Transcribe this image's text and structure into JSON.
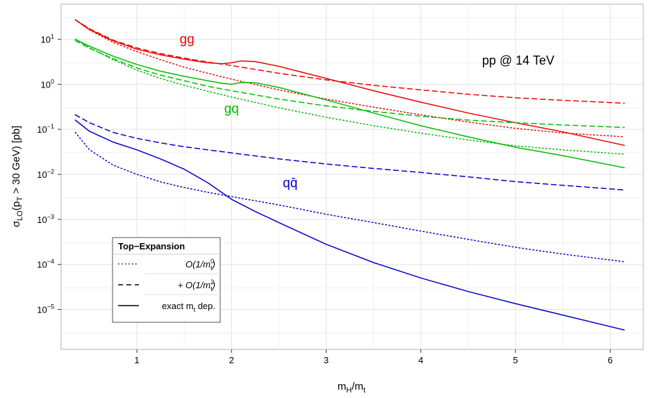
{
  "chart_data": {
    "type": "line",
    "xlabel": "m_H/m_t",
    "ylabel": "σ_LO(p_T > 30 GeV) [pb]",
    "xlim": [
      0.2,
      6.35
    ],
    "ylim": [
      1.3e-06,
      60
    ],
    "y_scale": "log",
    "grid": true,
    "x_ticks": [
      {
        "v": 1,
        "label": "1"
      },
      {
        "v": 2,
        "label": "2"
      },
      {
        "v": 3,
        "label": "3"
      },
      {
        "v": 4,
        "label": "4"
      },
      {
        "v": 5,
        "label": "5"
      },
      {
        "v": 6,
        "label": "6"
      }
    ],
    "y_ticks": [
      {
        "v": 10,
        "base": "10",
        "exp": "1"
      },
      {
        "v": 1,
        "base": "10",
        "exp": "0"
      },
      {
        "v": 0.1,
        "base": "10",
        "exp": "−1"
      },
      {
        "v": 0.01,
        "base": "10",
        "exp": "−2"
      },
      {
        "v": 0.001,
        "base": "10",
        "exp": "−3"
      },
      {
        "v": 0.0001,
        "base": "10",
        "exp": "−4"
      },
      {
        "v": 1e-05,
        "base": "10",
        "exp": "−5"
      }
    ],
    "annotation": "pp @ 14 TeV",
    "channel_labels": [
      {
        "text": "gg",
        "color": "#ee0000",
        "x": 1.53,
        "y": 8.0
      },
      {
        "text": "gq",
        "color": "#00bb00",
        "x": 2.0,
        "y": 0.23
      },
      {
        "text": "qq̄",
        "color": "#0000cc",
        "x": 2.62,
        "y": 0.0052
      }
    ],
    "series": [
      {
        "channel": "gg",
        "approx": "O(1/m_t^0)",
        "color": "#ee0000",
        "style": "dotted",
        "points": [
          [
            0.35,
            27
          ],
          [
            0.5,
            16
          ],
          [
            0.75,
            8.5
          ],
          [
            1.0,
            5.3
          ],
          [
            1.25,
            3.5
          ],
          [
            1.5,
            2.4
          ],
          [
            1.75,
            1.75
          ],
          [
            2.0,
            1.3
          ],
          [
            2.5,
            0.75
          ],
          [
            3.0,
            0.47
          ],
          [
            3.5,
            0.31
          ],
          [
            4.0,
            0.21
          ],
          [
            4.5,
            0.145
          ],
          [
            5.0,
            0.105
          ],
          [
            5.5,
            0.083
          ],
          [
            6.15,
            0.068
          ]
        ]
      },
      {
        "channel": "gg",
        "approx": "+O(1/m_t^2)",
        "color": "#ee0000",
        "style": "dashed",
        "points": [
          [
            0.35,
            27
          ],
          [
            0.5,
            17
          ],
          [
            0.75,
            9.5
          ],
          [
            1.0,
            6.4
          ],
          [
            1.25,
            4.8
          ],
          [
            1.5,
            3.8
          ],
          [
            1.75,
            3.1
          ],
          [
            2.0,
            2.6
          ],
          [
            2.5,
            1.75
          ],
          [
            3.0,
            1.25
          ],
          [
            3.5,
            0.95
          ],
          [
            4.0,
            0.75
          ],
          [
            4.5,
            0.6
          ],
          [
            5.0,
            0.5
          ],
          [
            5.5,
            0.44
          ],
          [
            6.15,
            0.38
          ]
        ]
      },
      {
        "channel": "gg",
        "approx": "exact m_t dep.",
        "color": "#ee0000",
        "style": "solid",
        "points": [
          [
            0.35,
            27
          ],
          [
            0.5,
            16.5
          ],
          [
            0.75,
            9.2
          ],
          [
            1.0,
            6.0
          ],
          [
            1.25,
            4.5
          ],
          [
            1.5,
            3.6
          ],
          [
            1.75,
            3.0
          ],
          [
            1.9,
            2.85
          ],
          [
            2.0,
            3.0
          ],
          [
            2.1,
            3.3
          ],
          [
            2.25,
            3.2
          ],
          [
            2.5,
            2.5
          ],
          [
            3.0,
            1.35
          ],
          [
            3.5,
            0.72
          ],
          [
            4.0,
            0.4
          ],
          [
            4.5,
            0.23
          ],
          [
            5.0,
            0.14
          ],
          [
            5.5,
            0.088
          ],
          [
            6.15,
            0.044
          ]
        ]
      },
      {
        "channel": "gq",
        "approx": "O(1/m_t^0)",
        "color": "#00bb00",
        "style": "dotted",
        "points": [
          [
            0.35,
            10
          ],
          [
            0.5,
            6.5
          ],
          [
            0.75,
            3.5
          ],
          [
            1.0,
            2.05
          ],
          [
            1.25,
            1.35
          ],
          [
            1.5,
            0.95
          ],
          [
            1.75,
            0.7
          ],
          [
            2.0,
            0.52
          ],
          [
            2.5,
            0.3
          ],
          [
            3.0,
            0.185
          ],
          [
            3.5,
            0.12
          ],
          [
            4.0,
            0.082
          ],
          [
            4.5,
            0.058
          ],
          [
            5.0,
            0.043
          ],
          [
            5.5,
            0.035
          ],
          [
            6.15,
            0.028
          ]
        ]
      },
      {
        "channel": "gq",
        "approx": "+O(1/m_t^2)",
        "color": "#00bb00",
        "style": "dashed",
        "points": [
          [
            0.35,
            9.3
          ],
          [
            0.5,
            6.3
          ],
          [
            0.75,
            3.7
          ],
          [
            1.0,
            2.3
          ],
          [
            1.25,
            1.6
          ],
          [
            1.5,
            1.2
          ],
          [
            1.75,
            0.9
          ],
          [
            2.0,
            0.72
          ],
          [
            2.5,
            0.47
          ],
          [
            3.0,
            0.33
          ],
          [
            3.5,
            0.25
          ],
          [
            4.0,
            0.195
          ],
          [
            4.5,
            0.16
          ],
          [
            5.0,
            0.14
          ],
          [
            5.5,
            0.125
          ],
          [
            6.15,
            0.11
          ]
        ]
      },
      {
        "channel": "gq",
        "approx": "exact m_t dep.",
        "color": "#00bb00",
        "style": "solid",
        "points": [
          [
            0.35,
            10
          ],
          [
            0.5,
            7.0
          ],
          [
            0.75,
            4.2
          ],
          [
            1.0,
            2.75
          ],
          [
            1.25,
            1.95
          ],
          [
            1.5,
            1.5
          ],
          [
            1.75,
            1.2
          ],
          [
            1.9,
            1.05
          ],
          [
            2.0,
            1.0
          ],
          [
            2.1,
            1.1
          ],
          [
            2.25,
            1.08
          ],
          [
            2.5,
            0.85
          ],
          [
            3.0,
            0.45
          ],
          [
            3.5,
            0.23
          ],
          [
            4.0,
            0.12
          ],
          [
            4.5,
            0.068
          ],
          [
            5.0,
            0.04
          ],
          [
            5.5,
            0.026
          ],
          [
            6.15,
            0.014
          ]
        ]
      },
      {
        "channel": "qq̄",
        "approx": "O(1/m_t^0)",
        "color": "#0000cc",
        "style": "dotted",
        "points": [
          [
            0.35,
            0.085
          ],
          [
            0.5,
            0.035
          ],
          [
            0.75,
            0.016
          ],
          [
            1.0,
            0.01
          ],
          [
            1.25,
            0.0068
          ],
          [
            1.5,
            0.0051
          ],
          [
            1.75,
            0.004
          ],
          [
            2.0,
            0.0032
          ],
          [
            2.5,
            0.0021
          ],
          [
            3.0,
            0.0013
          ],
          [
            3.5,
            0.00085
          ],
          [
            4.0,
            0.00055
          ],
          [
            4.5,
            0.00036
          ],
          [
            5.0,
            0.00024
          ],
          [
            5.5,
            0.00017
          ],
          [
            6.15,
            0.000115
          ]
        ]
      },
      {
        "channel": "qq̄",
        "approx": "+O(1/m_t^2)",
        "color": "#0000cc",
        "style": "dashed",
        "points": [
          [
            0.35,
            0.21
          ],
          [
            0.5,
            0.14
          ],
          [
            0.75,
            0.085
          ],
          [
            1.0,
            0.063
          ],
          [
            1.25,
            0.05
          ],
          [
            1.5,
            0.041
          ],
          [
            1.75,
            0.035
          ],
          [
            2.0,
            0.03
          ],
          [
            2.5,
            0.022
          ],
          [
            3.0,
            0.017
          ],
          [
            3.5,
            0.0135
          ],
          [
            4.0,
            0.011
          ],
          [
            4.5,
            0.0088
          ],
          [
            5.0,
            0.0069
          ],
          [
            5.5,
            0.0057
          ],
          [
            6.15,
            0.0045
          ]
        ]
      },
      {
        "channel": "qq̄",
        "approx": "exact m_t dep.",
        "color": "#0000cc",
        "style": "solid",
        "points": [
          [
            0.35,
            0.16
          ],
          [
            0.5,
            0.09
          ],
          [
            0.75,
            0.052
          ],
          [
            1.0,
            0.035
          ],
          [
            1.25,
            0.022
          ],
          [
            1.5,
            0.013
          ],
          [
            1.75,
            0.0065
          ],
          [
            2.0,
            0.0028
          ],
          [
            2.25,
            0.0015
          ],
          [
            2.5,
            0.00085
          ],
          [
            3.0,
            0.00028
          ],
          [
            3.5,
            0.00011
          ],
          [
            4.0,
            5e-05
          ],
          [
            4.5,
            2.5e-05
          ],
          [
            5.0,
            1.35e-05
          ],
          [
            5.5,
            7.5e-06
          ],
          [
            6.15,
            3.5e-06
          ]
        ]
      }
    ],
    "legend": {
      "title": "Top−Expansion",
      "placement": "bottom-left",
      "entries": [
        {
          "style": "dotted",
          "label": "O(1/m_t^0)"
        },
        {
          "style": "dashed",
          "label": "+ O(1/m_t^2)"
        },
        {
          "style": "solid",
          "label": "exact m_t dep."
        }
      ]
    }
  }
}
